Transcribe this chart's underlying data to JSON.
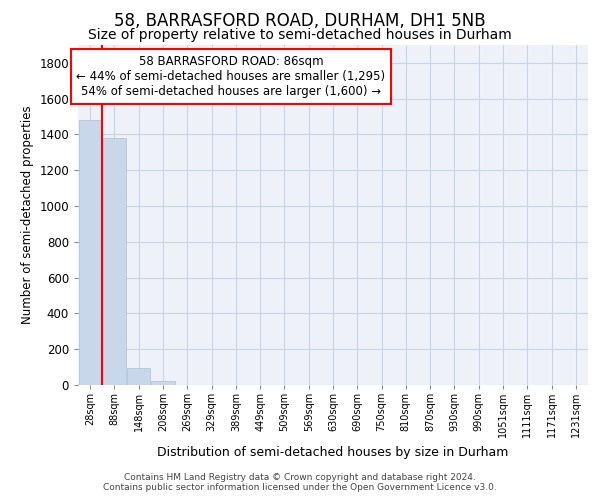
{
  "title": "58, BARRASFORD ROAD, DURHAM, DH1 5NB",
  "subtitle": "Size of property relative to semi-detached houses in Durham",
  "xlabel": "Distribution of semi-detached houses by size in Durham",
  "ylabel": "Number of semi-detached properties",
  "footer1": "Contains HM Land Registry data © Crown copyright and database right 2024.",
  "footer2": "Contains public sector information licensed under the Open Government Licence v3.0.",
  "categories": [
    "28sqm",
    "88sqm",
    "148sqm",
    "208sqm",
    "269sqm",
    "329sqm",
    "389sqm",
    "449sqm",
    "509sqm",
    "569sqm",
    "630sqm",
    "690sqm",
    "750sqm",
    "810sqm",
    "870sqm",
    "930sqm",
    "990sqm",
    "1051sqm",
    "1111sqm",
    "1171sqm",
    "1231sqm"
  ],
  "values": [
    1480,
    1380,
    95,
    25,
    2,
    0,
    0,
    0,
    0,
    0,
    0,
    0,
    0,
    0,
    0,
    0,
    0,
    0,
    0,
    0,
    0
  ],
  "bar_color": "#c8d8ea",
  "bar_edge_color": "#a8c0d8",
  "annotation_text_line1": "58 BARRASFORD ROAD: 86sqm",
  "annotation_text_line2": "← 44% of semi-detached houses are smaller (1,295)",
  "annotation_text_line3": "54% of semi-detached houses are larger (1,600) →",
  "ylim_max": 1900,
  "yticks": [
    0,
    200,
    400,
    600,
    800,
    1000,
    1200,
    1400,
    1600,
    1800
  ],
  "bg_color": "#ffffff",
  "plot_bg_color": "#eef2f8",
  "grid_color": "#c8d4e8",
  "title_fontsize": 12,
  "subtitle_fontsize": 10,
  "property_bar_index": 1
}
